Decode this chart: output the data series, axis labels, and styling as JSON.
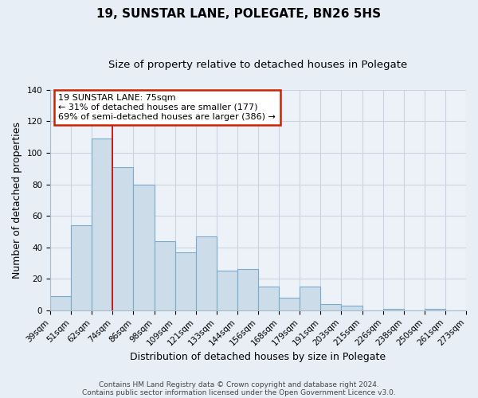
{
  "title": "19, SUNSTAR LANE, POLEGATE, BN26 5HS",
  "subtitle": "Size of property relative to detached houses in Polegate",
  "xlabel": "Distribution of detached houses by size in Polegate",
  "ylabel": "Number of detached properties",
  "bar_labels": [
    "39sqm",
    "51sqm",
    "62sqm",
    "74sqm",
    "86sqm",
    "98sqm",
    "109sqm",
    "121sqm",
    "133sqm",
    "144sqm",
    "156sqm",
    "168sqm",
    "179sqm",
    "191sqm",
    "203sqm",
    "215sqm",
    "226sqm",
    "238sqm",
    "250sqm",
    "261sqm",
    "273sqm"
  ],
  "bar_values": [
    9,
    54,
    109,
    91,
    80,
    44,
    37,
    47,
    25,
    26,
    15,
    8,
    15,
    4,
    3,
    0,
    1,
    0,
    1,
    0
  ],
  "bar_color": "#ccdce8",
  "bar_edge_color": "#7aabcc",
  "ylim": [
    0,
    140
  ],
  "yticks": [
    0,
    20,
    40,
    60,
    80,
    100,
    120,
    140
  ],
  "annotation_title": "19 SUNSTAR LANE: 75sqm",
  "annotation_line1": "← 31% of detached houses are smaller (177)",
  "annotation_line2": "69% of semi-detached houses are larger (386) →",
  "vline_color": "#cc0000",
  "vline_x_bar_index": 3,
  "footnote1": "Contains HM Land Registry data © Crown copyright and database right 2024.",
  "footnote2": "Contains public sector information licensed under the Open Government Licence v3.0.",
  "background_color": "#e8eef6",
  "plot_background_color": "#edf2f8",
  "grid_color": "#c8d4e4",
  "title_fontsize": 11,
  "subtitle_fontsize": 9.5,
  "axis_label_fontsize": 9,
  "tick_fontsize": 7.5,
  "annotation_fontsize": 8,
  "footnote_fontsize": 6.5
}
